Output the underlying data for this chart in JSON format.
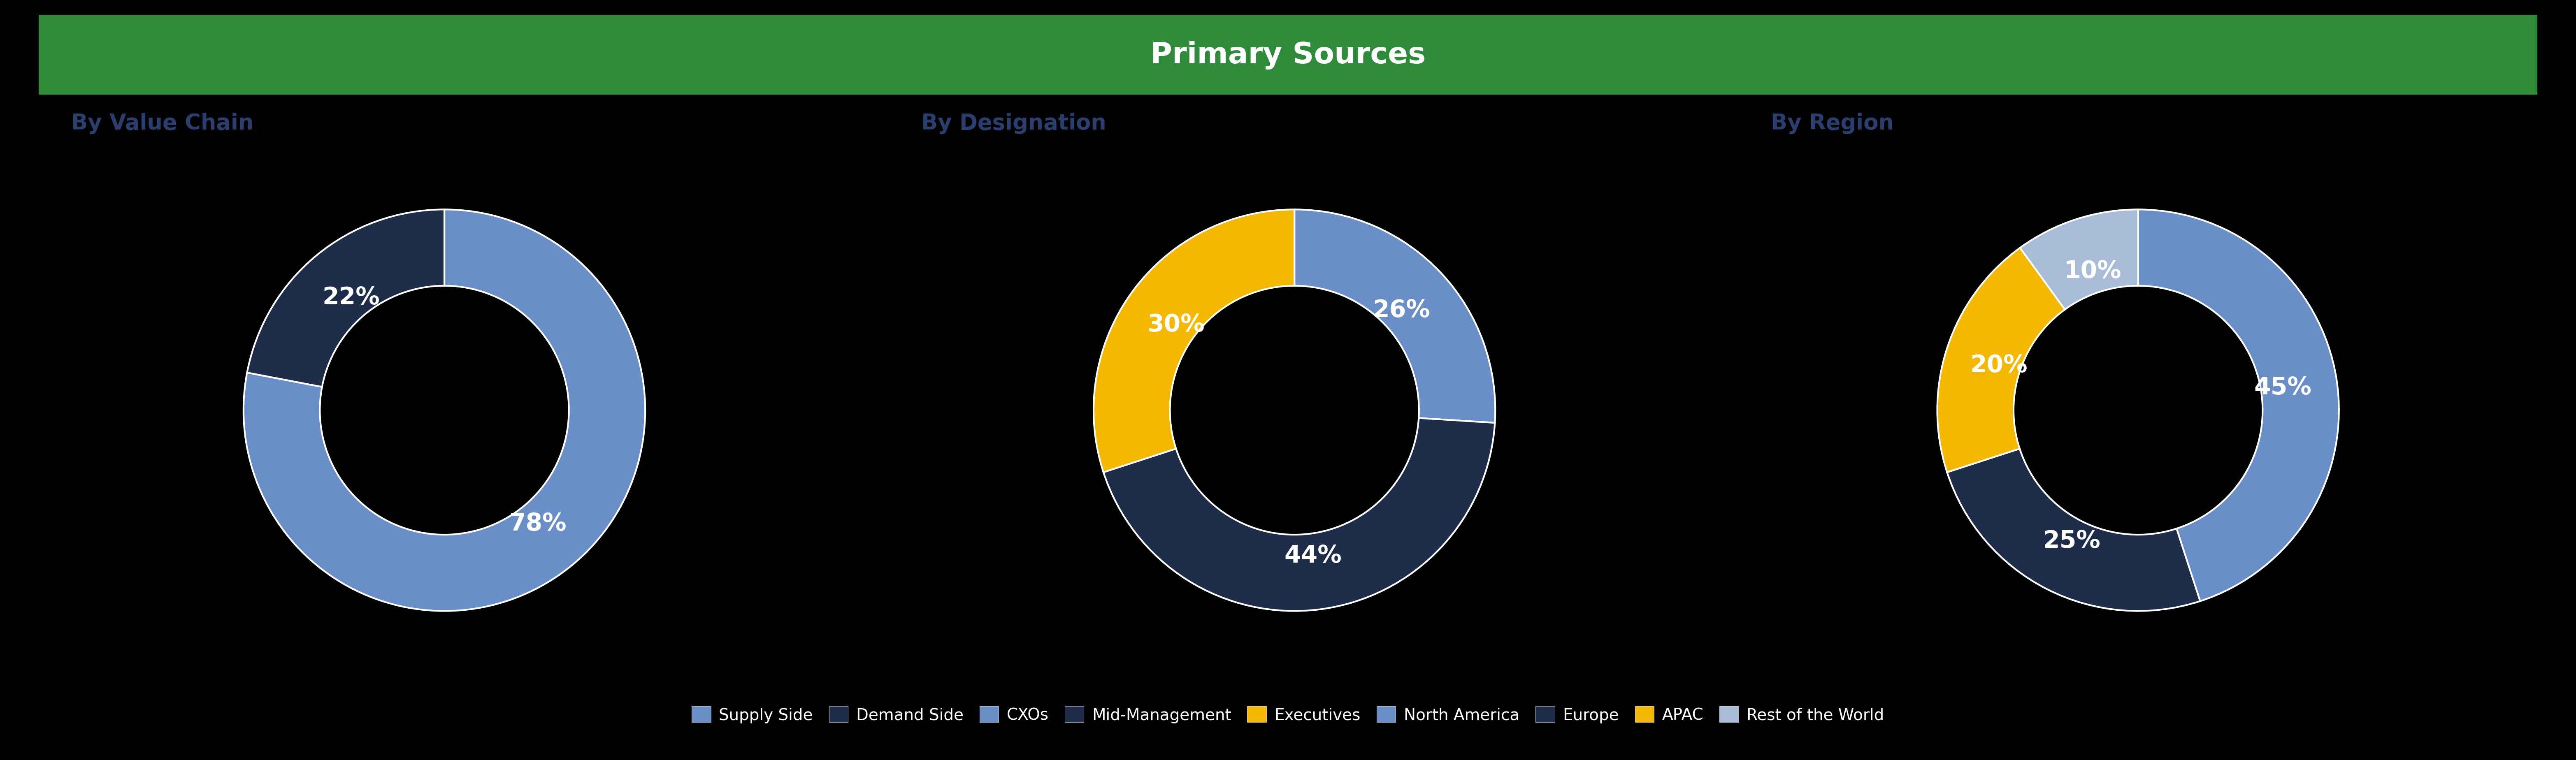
{
  "title": "Primary Sources",
  "title_bg_color": "#2e8b3a",
  "title_text_color": "#ffffff",
  "background_color": "#000000",
  "subtitle_color": "#2a3f6e",
  "chart1_title": "By Value Chain",
  "chart1_values": [
    78,
    22
  ],
  "chart1_labels": [
    "78%",
    "22%"
  ],
  "chart1_colors": [
    "#6a8fc8",
    "#1e2d4a"
  ],
  "chart1_legend": [
    "Supply Side",
    "Demand Side"
  ],
  "chart2_title": "By Designation",
  "chart2_values": [
    26,
    44,
    30
  ],
  "chart2_labels": [
    "26%",
    "44%",
    "30%"
  ],
  "chart2_colors": [
    "#6a8fc8",
    "#1e2d4a",
    "#f5b800"
  ],
  "chart2_legend": [
    "CXOs",
    "Mid-Management",
    "Executives"
  ],
  "chart3_title": "By Region",
  "chart3_values": [
    45,
    25,
    20,
    10
  ],
  "chart3_labels": [
    "45%",
    "25%",
    "20%",
    "10%"
  ],
  "chart3_colors": [
    "#6a8fc8",
    "#1e2d4a",
    "#f5b800",
    "#a8bcd8"
  ],
  "chart3_legend": [
    "North America",
    "Europe",
    "APAC",
    "Rest of the World"
  ],
  "legend_colors": {
    "Supply Side": "#6a8fc8",
    "Demand Side": "#1e2d4a",
    "CXOs": "#6a8fc8",
    "Mid-Management": "#1e2d4a",
    "Executives": "#f5b800",
    "North America": "#6a8fc8",
    "Europe": "#1e2d4a",
    "APAC": "#f5b800",
    "Rest of the World": "#a8bcd8"
  },
  "donut_width": 0.38,
  "label_fontsize": 42,
  "subtitle_fontsize": 38,
  "legend_fontsize": 28,
  "title_fontsize": 52
}
